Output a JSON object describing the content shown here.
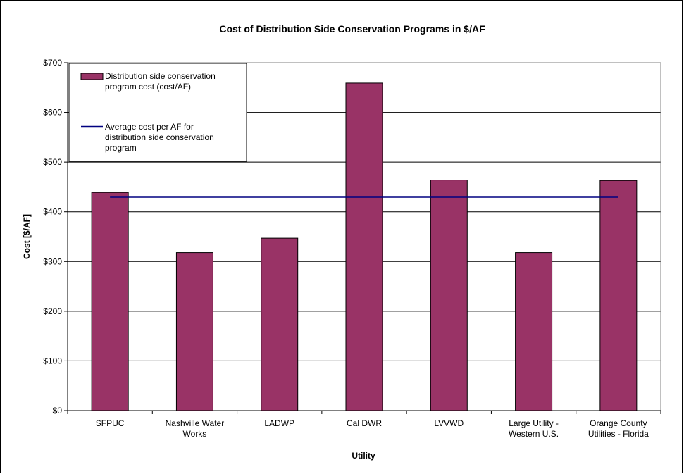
{
  "chart_data": {
    "type": "bar",
    "title": "Cost of Distribution Side Conservation Programs in $/AF",
    "xlabel": "Utility",
    "ylabel": "Cost [$/AF]",
    "ylim": [
      0,
      700
    ],
    "y_tick_step": 100,
    "y_tick_labels": [
      "$0",
      "$100",
      "$200",
      "$300",
      "$400",
      "$500",
      "$600",
      "$700"
    ],
    "grid": true,
    "legend_position": "top-left",
    "categories": [
      [
        "SFPUC"
      ],
      [
        "Nashville Water",
        "Works"
      ],
      [
        "LADWP"
      ],
      [
        "Cal DWR"
      ],
      [
        "LVVWD"
      ],
      [
        "Large Utility -",
        "Western U.S."
      ],
      [
        "Orange County",
        "Utilities - Florida"
      ]
    ],
    "series": [
      {
        "name": [
          "Distribution side conservation",
          "program cost (cost/AF)"
        ],
        "type": "bar",
        "color": "#993366",
        "values": [
          439,
          318,
          347,
          659,
          464,
          318,
          463
        ]
      },
      {
        "name": [
          "Average cost per AF for",
          "distribution side conservation",
          "program"
        ],
        "type": "line",
        "color": "#000080",
        "values": [
          430,
          430,
          430,
          430,
          430,
          430,
          430
        ]
      }
    ]
  }
}
